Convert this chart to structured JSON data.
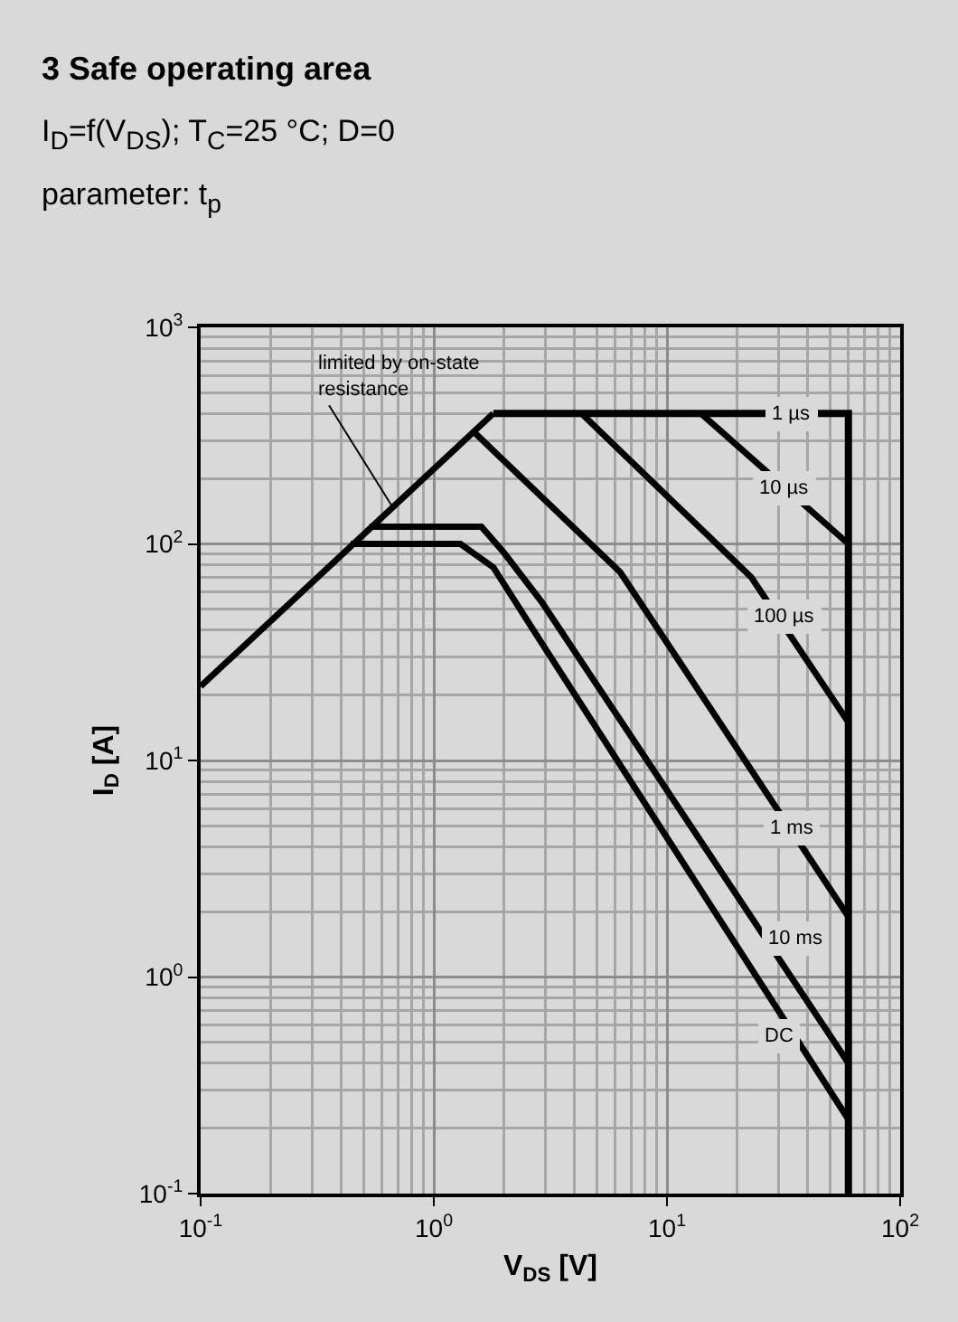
{
  "chart_data": {
    "type": "line",
    "title": "3 Safe operating area",
    "subtitle": "I$_{D}$=f(V$_{DS}$); T$_{C}$=25 °C; D=0",
    "xlabel": "V$_{DS}$ [V]",
    "ylabel": "I$_{D}$ [A]",
    "log": "xy",
    "grid": true,
    "marker": "none",
    "line_style": "solid",
    "xlim": [
      0.1,
      100
    ],
    "ylim": [
      0.1,
      1000
    ],
    "xticks": [
      {
        "value": 0.1,
        "label": "10$^{-1}$"
      },
      {
        "value": 1,
        "label": "10$^{0}$"
      },
      {
        "value": 10,
        "label": "10$^{1}$"
      },
      {
        "value": 100,
        "label": "10$^{2}$"
      }
    ],
    "yticks": [
      {
        "value": 0.1,
        "label": "10$^{-1}$"
      },
      {
        "value": 1,
        "label": "10$^{0}$"
      },
      {
        "value": 10,
        "label": "10$^{1}$"
      },
      {
        "value": 100,
        "label": "10$^{2}$"
      },
      {
        "value": 1000,
        "label": "10$^{3}$"
      }
    ],
    "series": [
      {
        "color": "#000000",
        "x": [
          0.1,
          1.8
        ],
        "values": [
          22,
          400
        ]
      },
      {
        "color": "#000000",
        "x": [
          1.8,
          60,
          60
        ],
        "values": [
          400,
          400,
          0.1
        ]
      },
      {
        "color": "#000000",
        "x": [
          14,
          60
        ],
        "values": [
          400,
          100
        ]
      },
      {
        "color": "#000000",
        "x": [
          4.3,
          23,
          60
        ],
        "values": [
          400,
          70,
          15
        ]
      },
      {
        "color": "#000000",
        "x": [
          1.48,
          6.3,
          60
        ],
        "values": [
          330,
          74,
          1.9
        ]
      },
      {
        "color": "#000000",
        "x": [
          0.53,
          1.6,
          2.0,
          2.9,
          60
        ],
        "values": [
          120,
          120,
          91,
          54,
          0.4
        ]
      },
      {
        "color": "#000000",
        "x": [
          0.44,
          1.3,
          1.8,
          2.8,
          60
        ],
        "values": [
          100,
          100,
          78,
          37,
          0.22
        ]
      }
    ],
    "annotations": [
      "parameter: t$_{p}$",
      {
        "text": "limited by on-state resistance",
        "x": 0.66,
        "y": 150
      },
      {
        "text": "1 µs",
        "x": 34,
        "y": 400
      },
      {
        "text": "10 µs",
        "x": 32,
        "y": 180
      },
      {
        "text": "100 µs",
        "x": 32,
        "y": 46
      },
      {
        "text": "1 ms",
        "x": 34,
        "y": 4.9
      },
      {
        "text": "10 ms",
        "x": 35.6,
        "y": 1.5
      },
      {
        "text": "DC",
        "x": 30,
        "y": 0.53
      }
    ]
  }
}
